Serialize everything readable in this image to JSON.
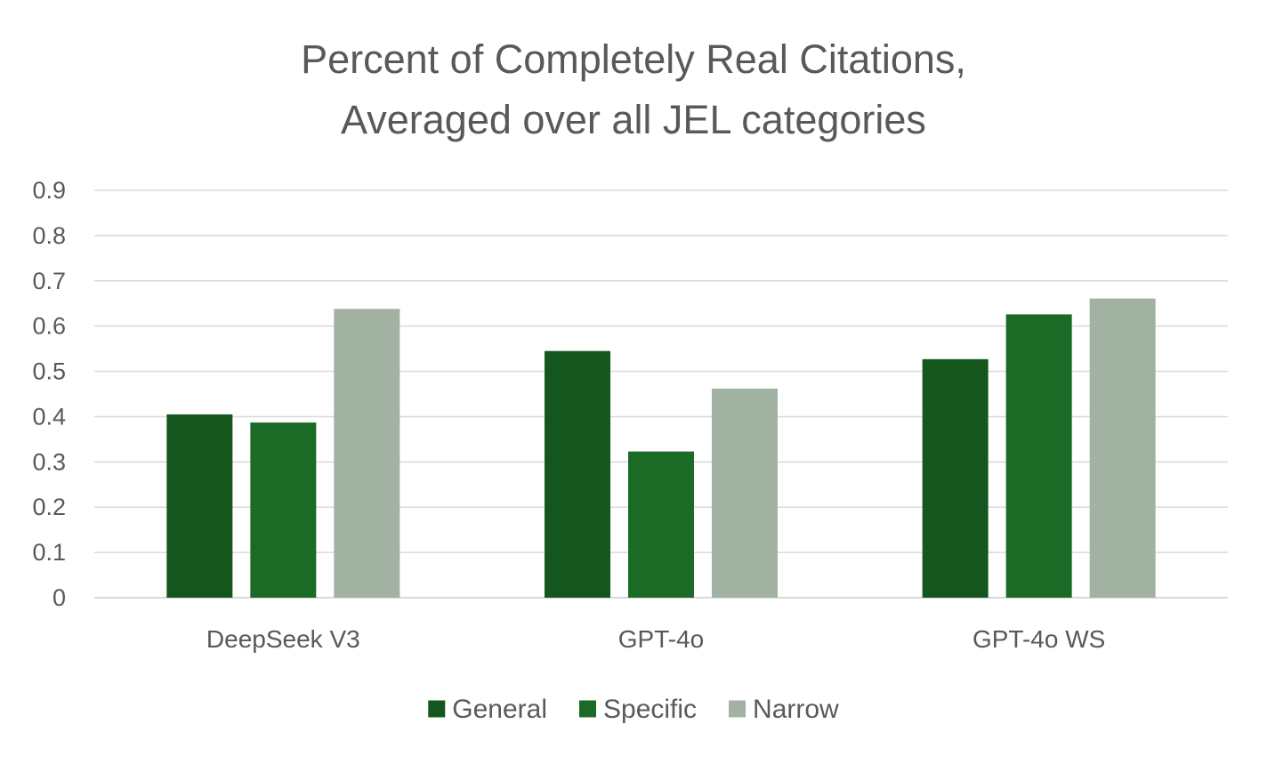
{
  "chart_data": {
    "type": "bar",
    "title": "Percent of Completely Real Citations, Averaged over all JEL categories",
    "title_lines": [
      "Percent of Completely Real Citations,",
      "Averaged over all JEL categories"
    ],
    "categories": [
      "DeepSeek V3",
      "GPT-4o",
      "GPT-4o WS"
    ],
    "series": [
      {
        "name": "General",
        "values": [
          0.405,
          0.545,
          0.527
        ],
        "color": "#15561f"
      },
      {
        "name": "Specific",
        "values": [
          0.387,
          0.323,
          0.626
        ],
        "color": "#1b6b27"
      },
      {
        "name": "Narrow",
        "values": [
          0.638,
          0.462,
          0.661
        ],
        "color": "#a2b2a2"
      }
    ],
    "ylim": [
      0,
      0.9
    ],
    "yticks": [
      "0",
      "0.1",
      "0.2",
      "0.3",
      "0.4",
      "0.5",
      "0.6",
      "0.7",
      "0.8",
      "0.9"
    ],
    "xlabel": "",
    "ylabel": "",
    "grid": true,
    "legend": "bottom",
    "colors": {
      "text": "#595959",
      "grid": "#d9d9d9"
    }
  }
}
